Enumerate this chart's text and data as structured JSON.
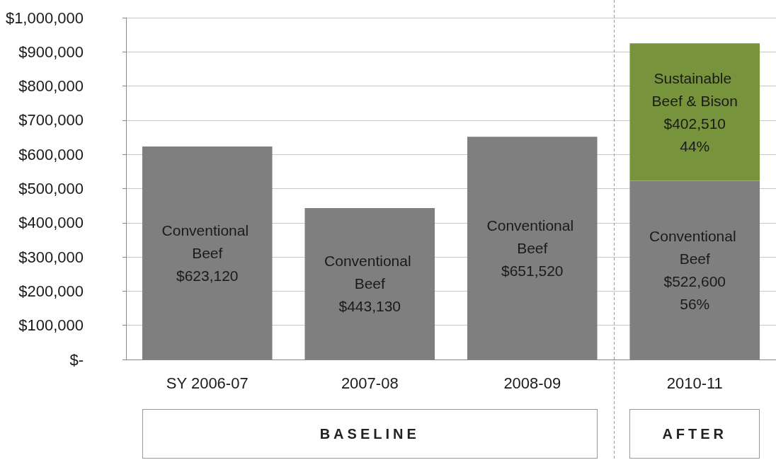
{
  "chart_data": {
    "type": "bar",
    "stacked": true,
    "categories": [
      "SY 2006-07",
      "2007-08",
      "2008-09",
      "2010-11"
    ],
    "series": [
      {
        "name": "Conventional Beef",
        "color": "#7f7f7f",
        "values": [
          623120,
          443130,
          651520,
          522600
        ],
        "value_labels": [
          "$623,120",
          "$443,130",
          "$651,520",
          "$522,600\n56%"
        ]
      },
      {
        "name": "Sustainable Beef & Bison",
        "color": "#77933c",
        "values": [
          null,
          null,
          null,
          402510
        ],
        "value_labels": [
          null,
          null,
          null,
          "$402,510\n44%"
        ]
      }
    ],
    "ylim": [
      0,
      1000000
    ],
    "yticks": [
      {
        "value": 0,
        "label": "$-"
      },
      {
        "value": 100000,
        "label": "$100,000"
      },
      {
        "value": 200000,
        "label": "$200,000"
      },
      {
        "value": 300000,
        "label": "$300,000"
      },
      {
        "value": 400000,
        "label": "$400,000"
      },
      {
        "value": 500000,
        "label": "$500,000"
      },
      {
        "value": 600000,
        "label": "$600,000"
      },
      {
        "value": 700000,
        "label": "$700,000"
      },
      {
        "value": 800000,
        "label": "$800,000"
      },
      {
        "value": 900000,
        "label": "$900,000"
      },
      {
        "value": 1000000,
        "label": "$1,000,000"
      }
    ],
    "grid": "y",
    "legend": false,
    "annotations": [
      "BASELINE",
      "AFTER"
    ]
  }
}
